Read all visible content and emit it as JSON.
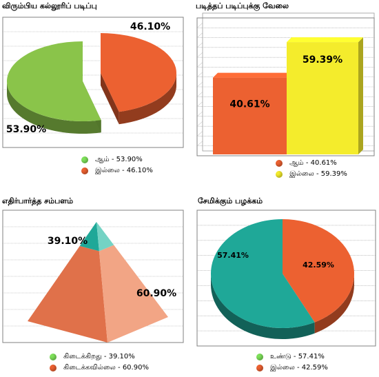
{
  "colors": {
    "green": "#8ac44a",
    "orange": "#ec6131",
    "yellow": "#f4ec2c",
    "teal": "#1fa898",
    "legend_green": "#7ee15a"
  },
  "chart_data": [
    {
      "type": "pie",
      "title": "விரும்பிய கல்லூரிப் படிப்பு",
      "slices": [
        {
          "name": "ஆம்",
          "value": 53.9,
          "label": "53.90%",
          "legend": "ஆம் - 53.90%"
        },
        {
          "name": "இல்லை",
          "value": 46.1,
          "label": "46.10%",
          "legend": "இல்லை - 46.10%"
        }
      ],
      "exploded": true,
      "grid": true,
      "legend_position": "bottom"
    },
    {
      "type": "bar",
      "title": "படித்தப் படிப்புக்கு வேலை",
      "categories": [
        "ஆம்",
        "இல்லை"
      ],
      "values": [
        40.61,
        59.39
      ],
      "labels": [
        "40.61%",
        "59.39%"
      ],
      "legend": [
        "ஆம் - 40.61%",
        "இல்லை - 59.39%"
      ],
      "ylim": [
        0,
        70
      ],
      "grid": true,
      "legend_position": "bottom"
    },
    {
      "type": "pyramid",
      "title": "எதிர்பார்த்த சம்பளம்",
      "slices": [
        {
          "name": "கிடைக்கிறது",
          "value": 39.1,
          "label": "39.10%",
          "legend": "கிடைக்கிறது - 39.10%"
        },
        {
          "name": "கிடைக்கவில்லை",
          "value": 60.9,
          "label": "60.90%",
          "legend": "கிடைக்கவில்லை - 60.90%"
        }
      ],
      "grid": true,
      "legend_position": "bottom"
    },
    {
      "type": "pie",
      "title": "சேமிக்கும் பழக்கம்",
      "slices": [
        {
          "name": "உண்டு",
          "value": 57.41,
          "label": "57.41%",
          "legend": "உண்டு - 57.41%"
        },
        {
          "name": "இல்லை",
          "value": 42.59,
          "label": "42.59%",
          "legend": "இல்லை - 42.59%"
        }
      ],
      "exploded": false,
      "grid": true,
      "legend_position": "bottom"
    }
  ]
}
